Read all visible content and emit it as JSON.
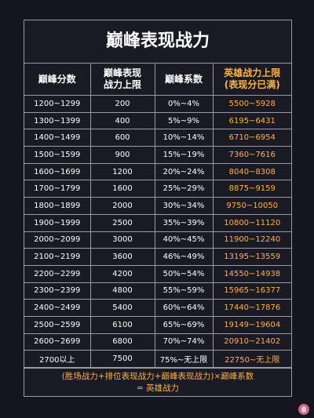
{
  "title": "巅峰表现战力",
  "headers": {
    "col1": "巅峰分数",
    "col2_line1": "巅峰表现",
    "col2_line2": "战力上限",
    "col3": "巅峰系数",
    "col4_line1": "英雄战力上限",
    "col4_line2": "(表现分已满)"
  },
  "rows": [
    {
      "score": "1200~1299",
      "cap": "200",
      "coef": "0%~4%",
      "hero": "5500~5928"
    },
    {
      "score": "1300~1399",
      "cap": "400",
      "coef": "5%~9%",
      "hero": "6195~6431"
    },
    {
      "score": "1400~1499",
      "cap": "600",
      "coef": "10%~14%",
      "hero": "6710~6954"
    },
    {
      "score": "1500~1599",
      "cap": "900",
      "coef": "15%~19%",
      "hero": "7360~7616"
    },
    {
      "score": "1600~1699",
      "cap": "1200",
      "coef": "20%~24%",
      "hero": "8040~8308"
    },
    {
      "score": "1700~1799",
      "cap": "1600",
      "coef": "25%~29%",
      "hero": "8875~9159"
    },
    {
      "score": "1800~1899",
      "cap": "2000",
      "coef": "30%~34%",
      "hero": "9750~10050"
    },
    {
      "score": "1900~1999",
      "cap": "2500",
      "coef": "35%~39%",
      "hero": "10800~11120"
    },
    {
      "score": "2000~2099",
      "cap": "3000",
      "coef": "40%~45%",
      "hero": "11900~12240"
    },
    {
      "score": "2100~2199",
      "cap": "3600",
      "coef": "46%~49%",
      "hero": "13195~13559"
    },
    {
      "score": "2200~2299",
      "cap": "4200",
      "coef": "50%~54%",
      "hero": "14550~14938"
    },
    {
      "score": "2300~2399",
      "cap": "4800",
      "coef": "55%~59%",
      "hero": "15965~16377"
    },
    {
      "score": "2400~2499",
      "cap": "5400",
      "coef": "60%~64%",
      "hero": "17440~17876"
    },
    {
      "score": "2500~2599",
      "cap": "6100",
      "coef": "65%~69%",
      "hero": "19149~19604"
    },
    {
      "score": "2600~2699",
      "cap": "6800",
      "coef": "70%~74%",
      "hero": "20910~21402"
    },
    {
      "score": "2700以上",
      "cap": "7500",
      "coef": "75%~无上限",
      "hero": "22750~无上限"
    }
  ],
  "formula_line1": "(胜场战力+排位表现战力+巅峰表现战力)×巅峰系数",
  "formula_line2": "= 英雄战力",
  "colors": {
    "accent_gold": "#ffb33a",
    "background": "#15151f",
    "border": "#9a9aa6"
  },
  "watermark_icon": "pink-logo-icon"
}
